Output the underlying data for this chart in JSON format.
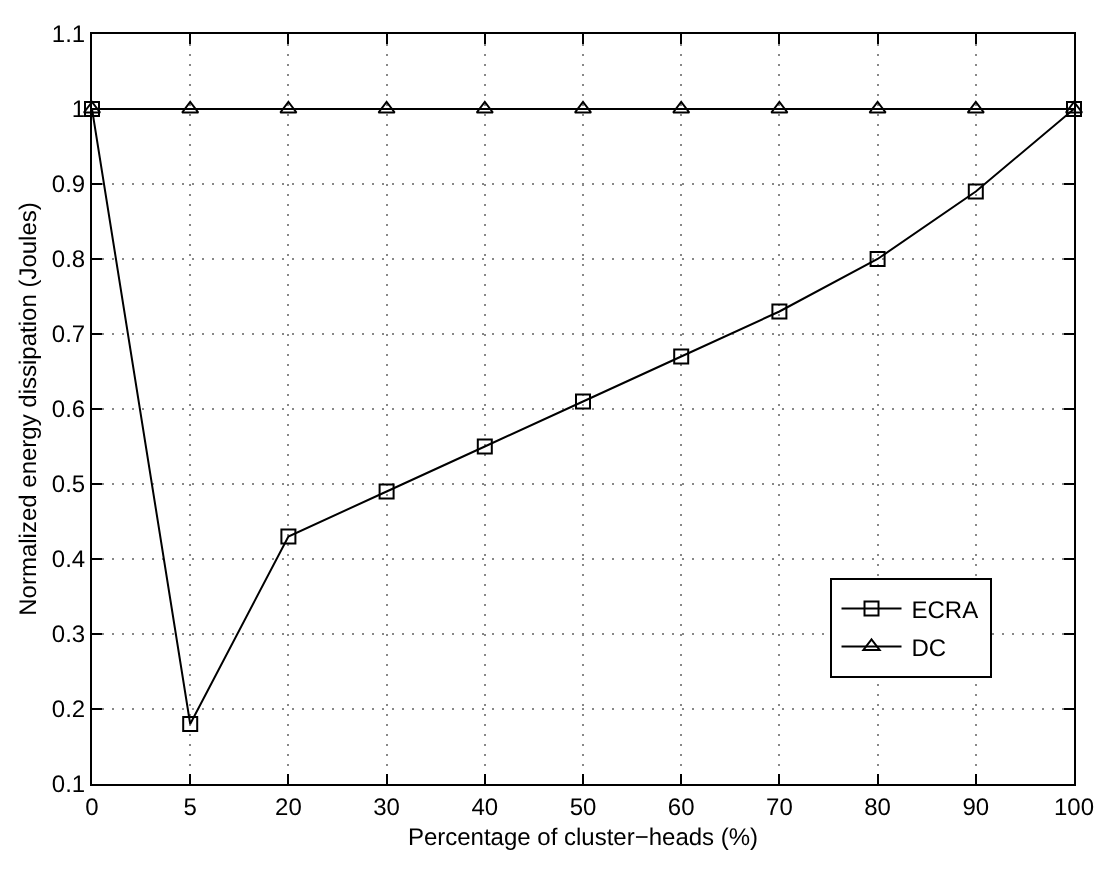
{
  "chart_data": {
    "type": "line",
    "xlabel": "Percentage of cluster−heads (%)",
    "ylabel": "Normalized energy dissipation (Joules)",
    "categories": [
      "0",
      "5",
      "20",
      "30",
      "40",
      "50",
      "60",
      "70",
      "80",
      "90",
      "100"
    ],
    "series": [
      {
        "name": "ECRA",
        "color": "#000000",
        "marker": "square",
        "values": [
          1.0,
          0.18,
          0.43,
          0.49,
          0.55,
          0.61,
          0.67,
          0.73,
          0.8,
          0.89,
          1.0
        ]
      },
      {
        "name": "DC",
        "color": "#000000",
        "marker": "triangle",
        "values": [
          1.0,
          1.0,
          1.0,
          1.0,
          1.0,
          1.0,
          1.0,
          1.0,
          1.0,
          1.0,
          1.0
        ]
      }
    ],
    "ylim": [
      0.1,
      1.1
    ],
    "yticks": [
      0.1,
      0.2,
      0.3,
      0.4,
      0.5,
      0.6,
      0.7,
      0.8,
      0.9,
      1,
      1.1
    ],
    "grid": true,
    "legend": "bottom right",
    "line_style": "solid"
  }
}
